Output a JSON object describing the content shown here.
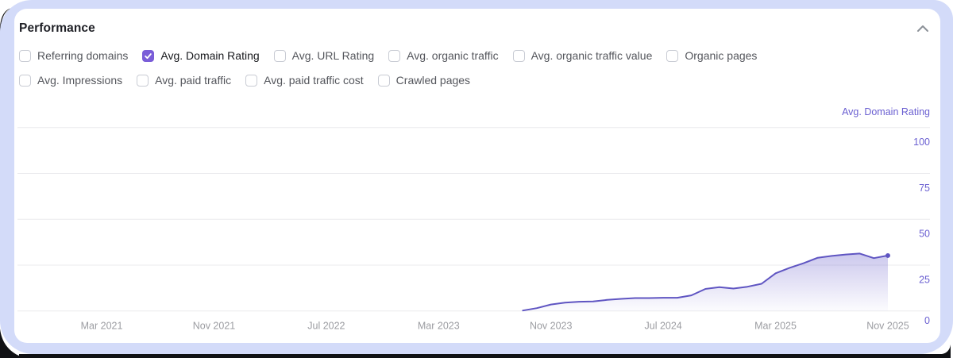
{
  "panel": {
    "title": "Performance",
    "collapse_icon": "chevron-up"
  },
  "filters": {
    "rows": [
      [
        {
          "label": "Referring domains",
          "checked": false
        },
        {
          "label": "Avg. Domain Rating",
          "checked": true
        },
        {
          "label": "Avg. URL Rating",
          "checked": false
        },
        {
          "label": "Avg. organic traffic",
          "checked": false
        },
        {
          "label": "Avg. organic traffic value",
          "checked": false
        },
        {
          "label": "Organic pages",
          "checked": false
        }
      ],
      [
        {
          "label": "Avg. Impressions",
          "checked": false
        },
        {
          "label": "Avg. paid traffic",
          "checked": false
        },
        {
          "label": "Avg. paid traffic cost",
          "checked": false
        },
        {
          "label": "Crawled pages",
          "checked": false
        }
      ]
    ]
  },
  "chart_data": {
    "type": "area",
    "title": "",
    "legend": "none",
    "grid": true,
    "y_axis": {
      "label": "Avg. Domain Rating",
      "side": "right",
      "range": [
        0,
        100
      ],
      "ticks": [
        100,
        75,
        50,
        25,
        0
      ]
    },
    "x_axis": {
      "domain": [
        "2020-09",
        "2026-02"
      ],
      "ticks": [
        {
          "date": "2021-03",
          "label": "Mar 2021"
        },
        {
          "date": "2021-11",
          "label": "Nov 2021"
        },
        {
          "date": "2022-07",
          "label": "Jul 2022"
        },
        {
          "date": "2023-03",
          "label": "Mar 2023"
        },
        {
          "date": "2023-11",
          "label": "Nov 2023"
        },
        {
          "date": "2024-07",
          "label": "Jul 2024"
        },
        {
          "date": "2025-03",
          "label": "Mar 2025"
        },
        {
          "date": "2025-11",
          "label": "Nov 2025"
        }
      ]
    },
    "series": [
      {
        "name": "Avg. Domain Rating",
        "points": [
          [
            "2023-09",
            0.2
          ],
          [
            "2023-10",
            1.5
          ],
          [
            "2023-11",
            3.5
          ],
          [
            "2023-12",
            4.5
          ],
          [
            "2024-01",
            5.0
          ],
          [
            "2024-02",
            5.2
          ],
          [
            "2024-03",
            6.0
          ],
          [
            "2024-04",
            6.6
          ],
          [
            "2024-05",
            7.0
          ],
          [
            "2024-06",
            7.0
          ],
          [
            "2024-07",
            7.2
          ],
          [
            "2024-08",
            7.2
          ],
          [
            "2024-09",
            8.5
          ],
          [
            "2024-10",
            12.0
          ],
          [
            "2024-11",
            13.0
          ],
          [
            "2024-12",
            12.2
          ],
          [
            "2025-01",
            13.2
          ],
          [
            "2025-02",
            14.8
          ],
          [
            "2025-03",
            20.5
          ],
          [
            "2025-04",
            23.5
          ],
          [
            "2025-05",
            26.0
          ],
          [
            "2025-06",
            29.0
          ],
          [
            "2025-07",
            30.0
          ],
          [
            "2025-08",
            30.8
          ],
          [
            "2025-09",
            31.3
          ],
          [
            "2025-10",
            28.8
          ],
          [
            "2025-11",
            30.2
          ]
        ]
      }
    ],
    "colors": {
      "line": "#5f55c2",
      "fill_top": "rgba(97,86,200,0.32)",
      "fill_bottom": "rgba(97,86,200,0.02)",
      "axis_text": "#6a5fd1",
      "grid": "#ebebee",
      "x_text": "#9b9ca1",
      "checkbox_checked": "#7a5dd8"
    }
  }
}
